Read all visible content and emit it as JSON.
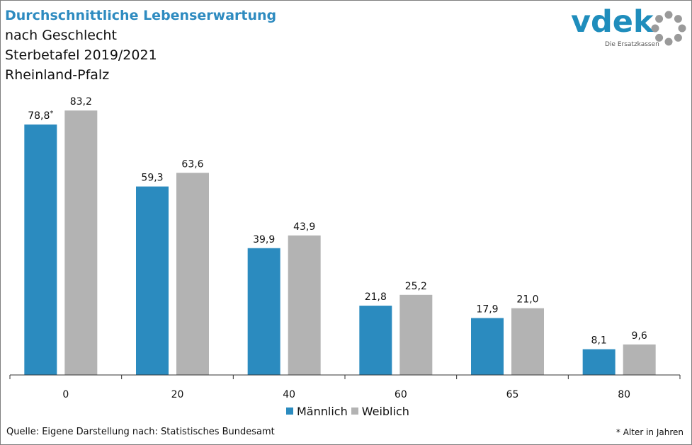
{
  "title_lines": [
    "Durchschnittliche Lebenserwartung",
    "nach Geschlecht",
    "Sterbetafel 2019/2021",
    "Rheinland-Pfalz"
  ],
  "logo": {
    "text": "vdek",
    "subtitle": "Die Ersatzkassen"
  },
  "colors": {
    "male": "#2b8bbf",
    "female": "#b3b3b3",
    "title": "#2e8bc0",
    "axis": "#333333"
  },
  "chart_data": {
    "type": "bar",
    "title": "Durchschnittliche Lebenserwartung nach Geschlecht, Sterbetafel 2019/2021, Rheinland-Pfalz",
    "xlabel": "",
    "ylabel": "",
    "ylim": [
      0,
      90
    ],
    "categories": [
      "0",
      "20",
      "40",
      "60",
      "65",
      "80"
    ],
    "series": [
      {
        "name": "Männlich",
        "values": [
          78.8,
          59.3,
          39.9,
          21.8,
          17.9,
          8.1
        ],
        "labels": [
          "78,8",
          "59,3",
          "39,9",
          "21,8",
          "17,9",
          "8,1"
        ]
      },
      {
        "name": "Weiblich",
        "values": [
          83.2,
          63.6,
          43.9,
          25.2,
          21.0,
          9.6
        ],
        "labels": [
          "83,2",
          "63,6",
          "43,9",
          "25,2",
          "21,0",
          "9,6"
        ]
      }
    ],
    "annotation_marker": "*",
    "legend_position": "bottom"
  },
  "legend": {
    "male": "Männlich",
    "female": "Weiblich"
  },
  "footer": {
    "source": "Quelle: Eigene Darstellung nach: Statistisches Bundesamt",
    "note": "* Alter in Jahren"
  }
}
